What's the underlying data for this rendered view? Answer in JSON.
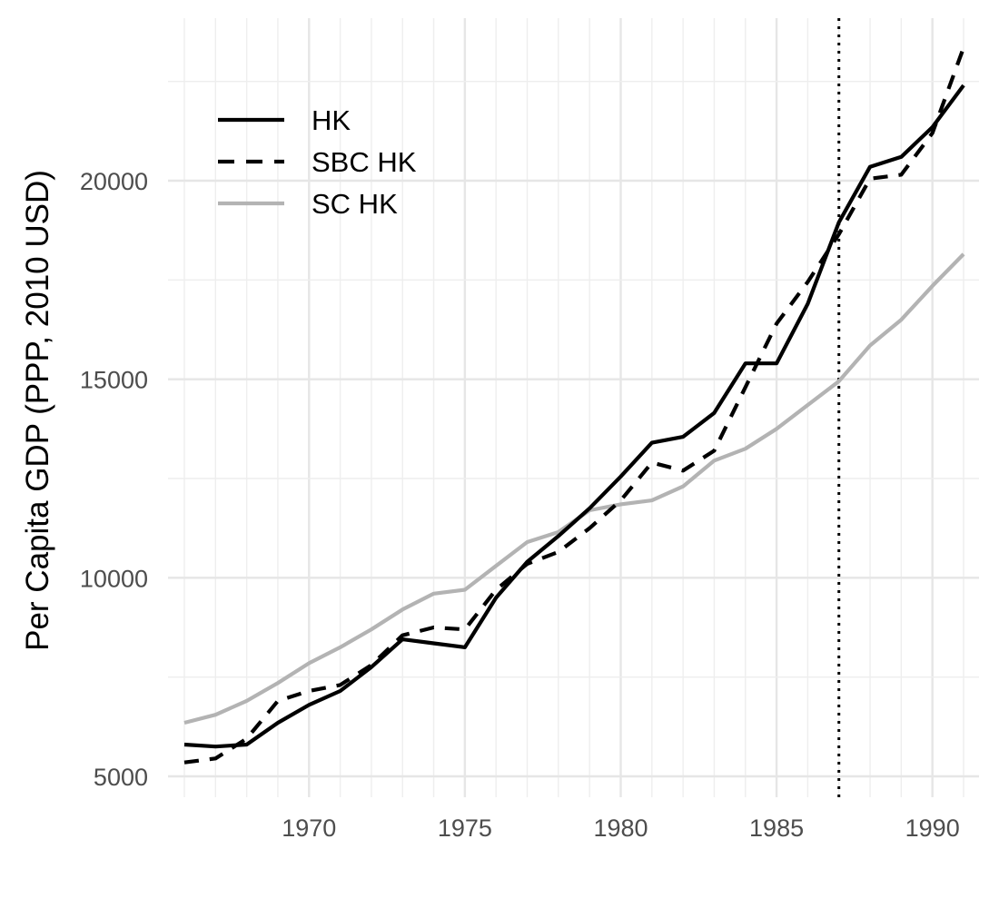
{
  "chart_data": {
    "type": "line",
    "title": "",
    "xlabel": "",
    "ylabel": "Per Capita GDP (PPP, 2010 USD)",
    "xlim": [
      1966,
      1991
    ],
    "ylim": [
      5000,
      23400
    ],
    "x_ticks": [
      1970,
      1975,
      1980,
      1985,
      1990
    ],
    "y_ticks": [
      5000,
      10000,
      15000,
      20000
    ],
    "grid": true,
    "legend_position": "top-left",
    "vline": {
      "x": 1987,
      "style": "dotted",
      "color": "#000000"
    },
    "x": [
      1966,
      1967,
      1968,
      1969,
      1970,
      1971,
      1972,
      1973,
      1974,
      1975,
      1976,
      1977,
      1978,
      1979,
      1980,
      1981,
      1982,
      1983,
      1984,
      1985,
      1986,
      1987,
      1988,
      1989,
      1990,
      1991
    ],
    "series": [
      {
        "name": "HK",
        "style": "solid",
        "color": "#000000",
        "values": [
          5800,
          5750,
          5800,
          6350,
          6800,
          7150,
          7750,
          8450,
          8350,
          8250,
          9500,
          10400,
          11050,
          11750,
          12550,
          13400,
          13550,
          14150,
          15400,
          15400,
          16900,
          18950,
          20350,
          20600,
          21350,
          22400
        ]
      },
      {
        "name": "SBC HK",
        "style": "dashed",
        "color": "#000000",
        "values": [
          5350,
          5450,
          5950,
          6900,
          7150,
          7300,
          7800,
          8550,
          8750,
          8700,
          9700,
          10350,
          10650,
          11250,
          11950,
          12900,
          12700,
          13200,
          14800,
          16400,
          17450,
          18650,
          20050,
          20150,
          21200,
          23350
        ]
      },
      {
        "name": "SC HK",
        "style": "solid",
        "color": "#b3b3b3",
        "values": [
          6350,
          6550,
          6900,
          7350,
          7850,
          8250,
          8700,
          9200,
          9600,
          9700,
          10300,
          10900,
          11150,
          11700,
          11850,
          11950,
          12300,
          12950,
          13250,
          13750,
          14350,
          14950,
          15850,
          16500,
          17350,
          18150
        ]
      }
    ]
  }
}
